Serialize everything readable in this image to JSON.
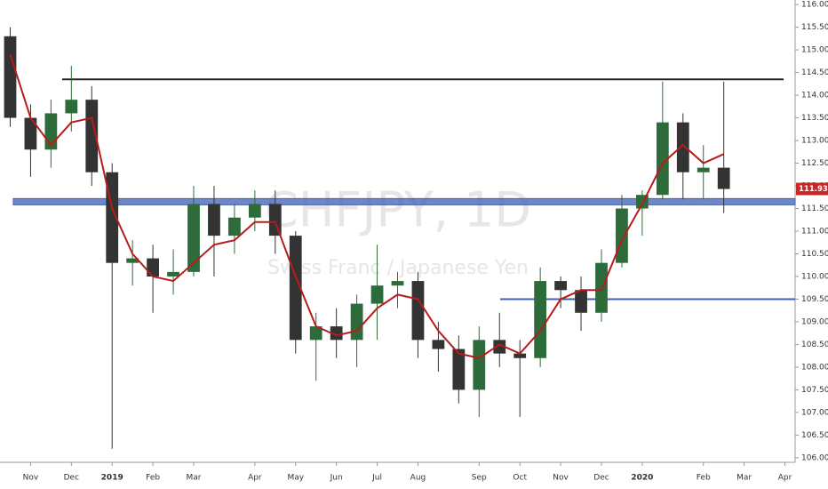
{
  "chart_data": {
    "type": "candlestick",
    "title": "CHFJPY, 1D",
    "subtitle": "Swiss Franc / Japanese Yen",
    "categories": [
      null,
      "Nov",
      null,
      "Dec",
      null,
      "2019",
      null,
      "Feb",
      null,
      "Mar",
      null,
      null,
      "Apr",
      null,
      "May",
      null,
      "Jun",
      null,
      "Jul",
      null,
      "Aug",
      null,
      null,
      "Sep",
      null,
      "Oct",
      null,
      "Nov",
      null,
      "Dec",
      null,
      "2020",
      null,
      null,
      "Feb",
      null,
      "Mar",
      null,
      "Apr"
    ],
    "open": [
      115.3,
      113.5,
      112.8,
      113.6,
      113.9,
      112.3,
      110.3,
      110.4,
      110.0,
      110.1,
      111.6,
      110.9,
      111.3,
      111.6,
      110.9,
      108.6,
      108.9,
      108.6,
      109.4,
      109.8,
      109.9,
      108.6,
      108.4,
      107.5,
      108.6,
      108.3,
      108.2,
      109.9,
      109.7,
      109.2,
      110.3,
      111.5,
      111.8,
      113.4,
      112.3,
      112.4,
      null,
      null,
      null
    ],
    "high": [
      115.5,
      113.8,
      113.9,
      114.65,
      114.2,
      112.5,
      110.8,
      110.7,
      110.6,
      112.0,
      112.0,
      111.6,
      111.9,
      111.9,
      111.0,
      109.2,
      109.3,
      109.6,
      110.7,
      110.1,
      110.1,
      109.0,
      108.7,
      108.9,
      109.2,
      108.6,
      110.2,
      110.0,
      110.0,
      110.6,
      111.8,
      111.9,
      114.3,
      113.6,
      112.9,
      114.3,
      null,
      null,
      null
    ],
    "low": [
      113.3,
      112.2,
      112.4,
      113.2,
      112.0,
      106.2,
      109.8,
      109.2,
      109.6,
      110.0,
      110.0,
      110.5,
      111.0,
      110.5,
      108.3,
      107.7,
      108.2,
      108.0,
      108.6,
      109.3,
      108.2,
      107.9,
      107.2,
      106.9,
      108.0,
      106.9,
      108.0,
      109.3,
      108.8,
      109.0,
      110.2,
      110.9,
      111.7,
      111.7,
      111.7,
      111.4,
      null,
      null,
      null
    ],
    "close": [
      113.5,
      112.8,
      113.6,
      113.9,
      112.3,
      110.3,
      110.4,
      110.0,
      110.1,
      111.6,
      110.9,
      111.3,
      111.6,
      110.9,
      108.6,
      108.9,
      108.6,
      109.4,
      109.8,
      109.9,
      108.6,
      108.4,
      107.5,
      108.6,
      108.3,
      108.2,
      109.9,
      109.7,
      109.2,
      110.3,
      111.5,
      111.8,
      113.4,
      112.3,
      112.4,
      111.931,
      null,
      null,
      null
    ],
    "up_color": "#2e6b3a",
    "down_color": "#333333",
    "ma_values": [
      114.9,
      113.5,
      112.9,
      113.4,
      113.5,
      111.5,
      110.5,
      110.0,
      109.9,
      110.3,
      110.7,
      110.8,
      111.2,
      111.2,
      110.0,
      108.9,
      108.7,
      108.8,
      109.3,
      109.6,
      109.5,
      108.8,
      108.3,
      108.2,
      108.5,
      108.3,
      108.8,
      109.5,
      109.7,
      109.7,
      110.8,
      111.6,
      112.5,
      112.9,
      112.5,
      112.7,
      null,
      null,
      null
    ],
    "ma_color": "#b71c1c",
    "levels": [
      {
        "value": 114.35,
        "color": "#222222"
      },
      {
        "value": 111.65,
        "color": "#3f5fb0"
      },
      {
        "value": 109.5,
        "color": "#3f5fb0"
      }
    ],
    "last_price_color": "#c62828",
    "ylim": [
      105.9,
      116.1
    ],
    "yticks": [
      {
        "value": 106,
        "label": "106.000"
      },
      {
        "value": 106.5,
        "label": "106.500"
      },
      {
        "value": 107,
        "label": "107.000"
      },
      {
        "value": 107.5,
        "label": "107.500"
      },
      {
        "value": 108,
        "label": "108.000"
      },
      {
        "value": 108.5,
        "label": "108.500"
      },
      {
        "value": 109,
        "label": "109.000"
      },
      {
        "value": 109.5,
        "label": "109.500"
      },
      {
        "value": 110,
        "label": "110.000"
      },
      {
        "value": 110.5,
        "label": "110.500"
      },
      {
        "value": 111,
        "label": "111.000"
      },
      {
        "value": 111.5,
        "label": "111.500"
      },
      {
        "value": 112,
        "label": "112.000"
      },
      {
        "value": 112.5,
        "label": "112.500"
      },
      {
        "value": 113,
        "label": "113.000"
      },
      {
        "value": 113.5,
        "label": "113.500"
      },
      {
        "value": 114,
        "label": "114.000"
      },
      {
        "value": 114.5,
        "label": "114.500"
      },
      {
        "value": 115,
        "label": "115.000"
      },
      {
        "value": 115.5,
        "label": "115.500"
      },
      {
        "value": 116,
        "label": "116.000"
      }
    ]
  }
}
